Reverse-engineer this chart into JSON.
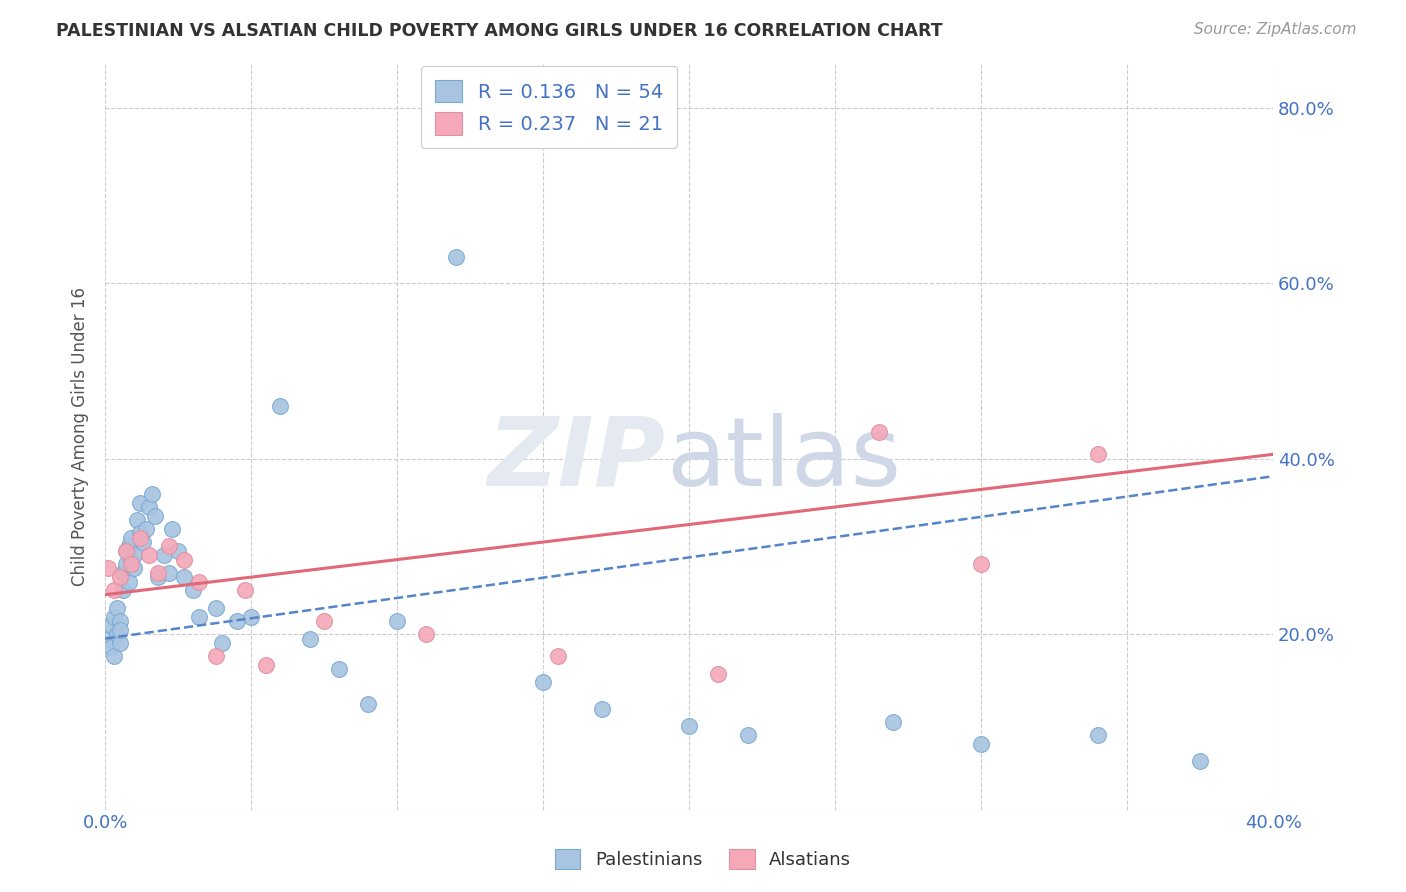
{
  "title": "PALESTINIAN VS ALSATIAN CHILD POVERTY AMONG GIRLS UNDER 16 CORRELATION CHART",
  "source": "Source: ZipAtlas.com",
  "ylabel": "Child Poverty Among Girls Under 16",
  "xlim": [
    0.0,
    0.4
  ],
  "ylim": [
    0.0,
    0.85
  ],
  "x_ticks": [
    0.0,
    0.05,
    0.1,
    0.15,
    0.2,
    0.25,
    0.3,
    0.35,
    0.4
  ],
  "y_ticks": [
    0.0,
    0.2,
    0.4,
    0.6,
    0.8
  ],
  "palestinian_R": 0.136,
  "palestinian_N": 54,
  "alsatian_R": 0.237,
  "alsatian_N": 21,
  "palestinian_color": "#a8c4e0",
  "alsatian_color": "#f4a8b8",
  "palestinian_line_color": "#5585c8",
  "alsatian_line_color": "#e06878",
  "palestinians_x": [
    0.001,
    0.002,
    0.002,
    0.003,
    0.003,
    0.004,
    0.004,
    0.005,
    0.005,
    0.005,
    0.006,
    0.006,
    0.007,
    0.007,
    0.008,
    0.008,
    0.009,
    0.009,
    0.01,
    0.01,
    0.011,
    0.012,
    0.012,
    0.013,
    0.014,
    0.015,
    0.016,
    0.017,
    0.018,
    0.02,
    0.022,
    0.023,
    0.025,
    0.027,
    0.03,
    0.032,
    0.038,
    0.04,
    0.045,
    0.05,
    0.06,
    0.07,
    0.08,
    0.09,
    0.1,
    0.12,
    0.15,
    0.17,
    0.2,
    0.22,
    0.27,
    0.3,
    0.34,
    0.375
  ],
  "palestinians_y": [
    0.195,
    0.21,
    0.185,
    0.22,
    0.175,
    0.2,
    0.23,
    0.215,
    0.19,
    0.205,
    0.25,
    0.27,
    0.28,
    0.295,
    0.26,
    0.3,
    0.285,
    0.31,
    0.275,
    0.29,
    0.33,
    0.315,
    0.35,
    0.305,
    0.32,
    0.345,
    0.36,
    0.335,
    0.265,
    0.29,
    0.27,
    0.32,
    0.295,
    0.265,
    0.25,
    0.22,
    0.23,
    0.19,
    0.215,
    0.22,
    0.46,
    0.195,
    0.16,
    0.12,
    0.215,
    0.63,
    0.145,
    0.115,
    0.095,
    0.085,
    0.1,
    0.075,
    0.085,
    0.055
  ],
  "alsatians_x": [
    0.001,
    0.003,
    0.005,
    0.007,
    0.009,
    0.012,
    0.015,
    0.018,
    0.022,
    0.027,
    0.032,
    0.038,
    0.048,
    0.055,
    0.075,
    0.11,
    0.155,
    0.21,
    0.265,
    0.3,
    0.34
  ],
  "alsatians_y": [
    0.275,
    0.25,
    0.265,
    0.295,
    0.28,
    0.31,
    0.29,
    0.27,
    0.3,
    0.285,
    0.26,
    0.175,
    0.25,
    0.165,
    0.215,
    0.2,
    0.175,
    0.155,
    0.43,
    0.28,
    0.405
  ],
  "pal_trend_x0": 0.0,
  "pal_trend_y0": 0.195,
  "pal_trend_x1": 0.4,
  "pal_trend_y1": 0.38,
  "als_trend_x0": 0.0,
  "als_trend_y0": 0.245,
  "als_trend_x1": 0.4,
  "als_trend_y1": 0.405
}
